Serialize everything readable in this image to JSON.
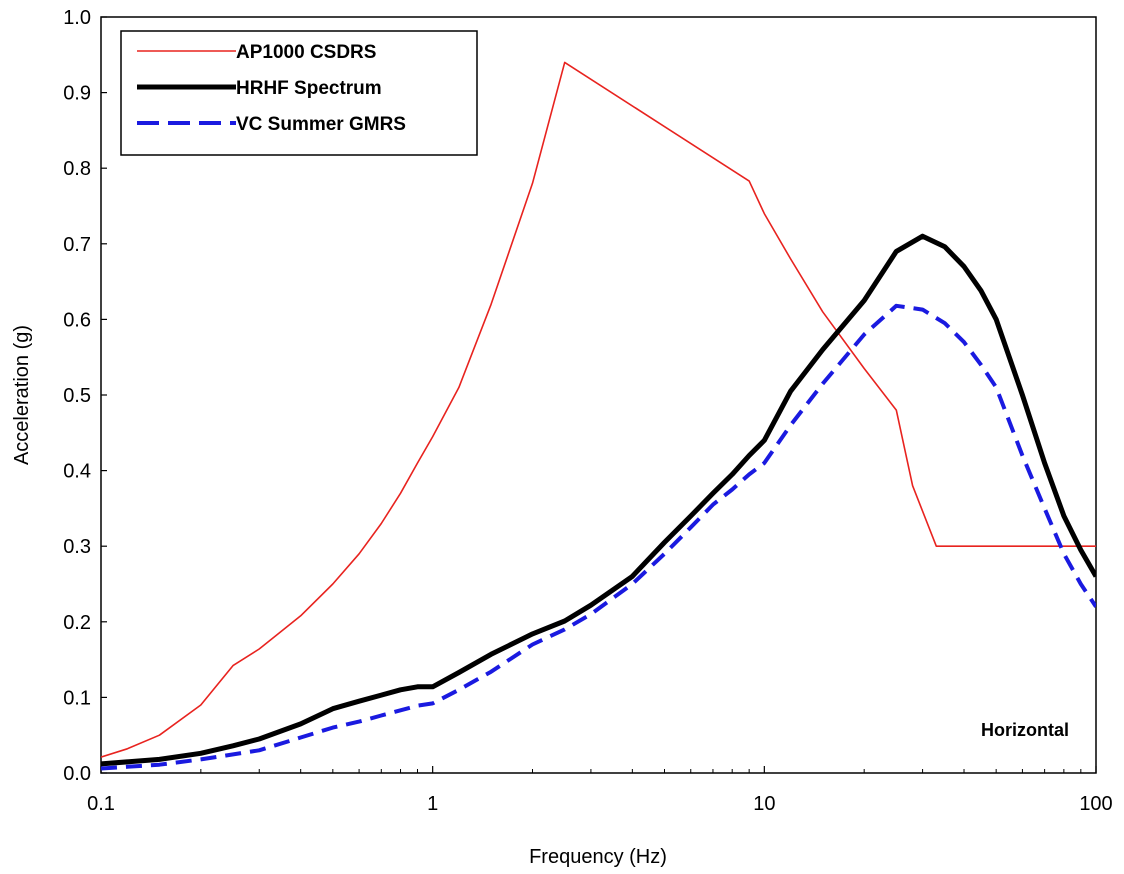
{
  "chart_data": {
    "type": "line",
    "x_scale": "log",
    "xlabel": "Frequency (Hz)",
    "ylabel": "Acceleration (g)",
    "xlim": [
      0.1,
      100
    ],
    "ylim": [
      0,
      1.0
    ],
    "x_ticks": [
      "0.1",
      "1",
      "10",
      "100"
    ],
    "y_ticks": [
      "0.0",
      "0.1",
      "0.2",
      "0.3",
      "0.4",
      "0.5",
      "0.6",
      "0.7",
      "0.8",
      "0.9",
      "1.0"
    ],
    "grid": false,
    "legend_position": "top-left",
    "annotation": "Horizontal",
    "series": [
      {
        "name": "AP1000 CSDRS",
        "color": "#e8231f",
        "style": "solid-thin",
        "x": [
          0.1,
          0.12,
          0.15,
          0.2,
          0.25,
          0.3,
          0.4,
          0.5,
          0.6,
          0.7,
          0.8,
          0.9,
          1.0,
          1.2,
          1.5,
          2.0,
          2.5,
          9.0,
          10.0,
          12.0,
          15.0,
          20.0,
          25.0,
          28.0,
          33.0,
          100.0
        ],
        "y": [
          0.021,
          0.032,
          0.05,
          0.09,
          0.142,
          0.164,
          0.208,
          0.25,
          0.29,
          0.33,
          0.37,
          0.41,
          0.445,
          0.51,
          0.62,
          0.78,
          0.94,
          0.783,
          0.74,
          0.68,
          0.61,
          0.535,
          0.48,
          0.38,
          0.3,
          0.3
        ]
      },
      {
        "name": "HRHF Spectrum",
        "color": "#000000",
        "style": "solid-thick",
        "x": [
          0.1,
          0.15,
          0.2,
          0.25,
          0.3,
          0.4,
          0.5,
          0.6,
          0.7,
          0.8,
          0.9,
          1.0,
          1.2,
          1.5,
          2.0,
          2.5,
          3.0,
          4.0,
          5.0,
          6.0,
          7.0,
          8.0,
          9.0,
          10.0,
          12.0,
          15.0,
          20.0,
          25.0,
          30.0,
          35.0,
          40.0,
          45.0,
          50.0,
          60.0,
          70.0,
          80.0,
          90.0,
          100.0
        ],
        "y": [
          0.012,
          0.018,
          0.026,
          0.036,
          0.045,
          0.065,
          0.085,
          0.095,
          0.103,
          0.11,
          0.114,
          0.114,
          0.133,
          0.157,
          0.184,
          0.201,
          0.222,
          0.26,
          0.305,
          0.34,
          0.37,
          0.395,
          0.42,
          0.44,
          0.505,
          0.56,
          0.625,
          0.69,
          0.71,
          0.696,
          0.67,
          0.638,
          0.6,
          0.5,
          0.41,
          0.34,
          0.295,
          0.26
        ]
      },
      {
        "name": "VC Summer GMRS",
        "color": "#1a1ae0",
        "style": "dashed",
        "x": [
          0.1,
          0.15,
          0.2,
          0.3,
          0.4,
          0.5,
          0.6,
          0.7,
          0.8,
          0.9,
          1.0,
          1.2,
          1.5,
          2.0,
          2.5,
          3.0,
          4.0,
          5.0,
          6.0,
          7.0,
          8.0,
          9.0,
          10.0,
          12.0,
          15.0,
          20.0,
          25.0,
          30.0,
          35.0,
          40.0,
          45.0,
          50.0,
          60.0,
          70.0,
          80.0,
          90.0,
          100.0
        ],
        "y": [
          0.006,
          0.011,
          0.018,
          0.03,
          0.047,
          0.06,
          0.068,
          0.076,
          0.083,
          0.089,
          0.092,
          0.11,
          0.134,
          0.17,
          0.19,
          0.21,
          0.25,
          0.29,
          0.325,
          0.355,
          0.375,
          0.395,
          0.41,
          0.46,
          0.515,
          0.58,
          0.618,
          0.613,
          0.595,
          0.57,
          0.54,
          0.51,
          0.42,
          0.35,
          0.29,
          0.25,
          0.22
        ]
      }
    ]
  }
}
